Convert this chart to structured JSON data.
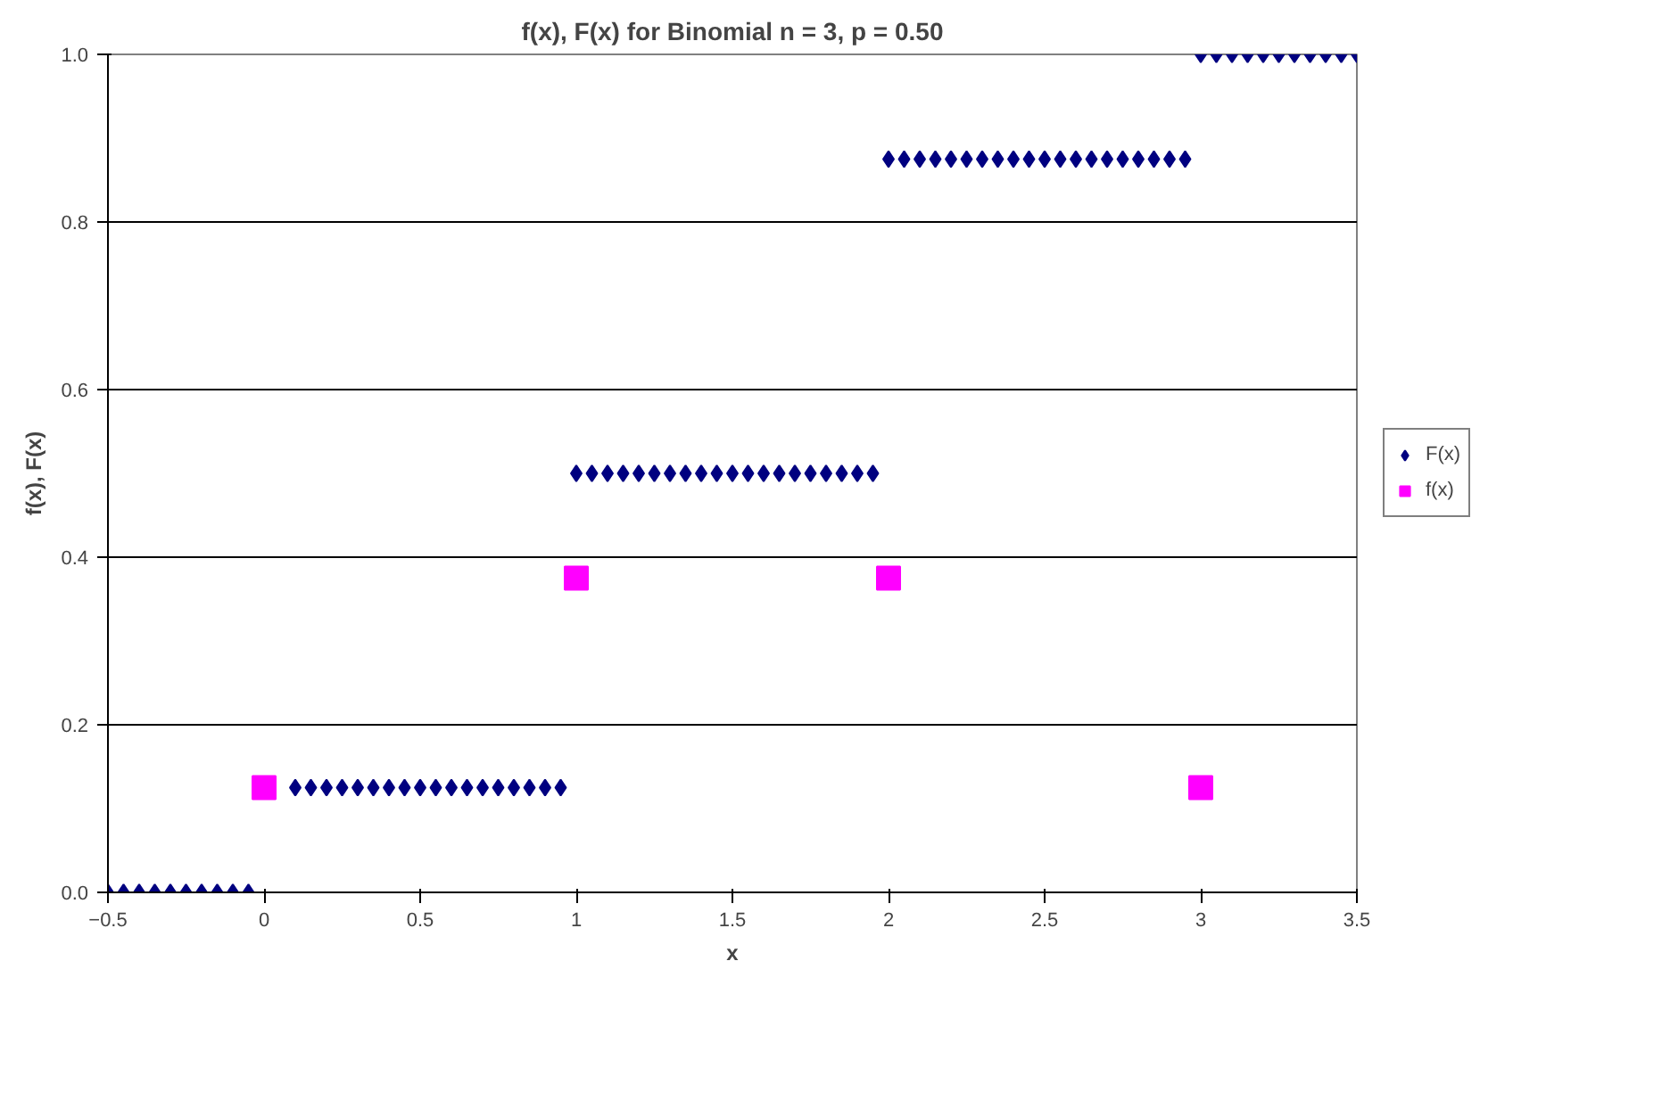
{
  "chart_data": {
    "type": "scatter",
    "title": "f(x), F(x) for Binomial n = 3, p = 0.50",
    "xlabel": "x",
    "ylabel": "f(x), F(x)",
    "xlim": [
      -0.5,
      3.5
    ],
    "xticks": [
      -0.5,
      0,
      0.5,
      1,
      1.5,
      2,
      2.5,
      3,
      3.5
    ],
    "ylim": [
      0,
      1
    ],
    "yticks": [
      {
        "value": 0,
        "label": "0.0"
      },
      {
        "value": 0.2,
        "label": "0.2"
      },
      {
        "value": 0.4,
        "label": "0.4"
      },
      {
        "value": 0.6,
        "label": "0.6"
      },
      {
        "value": 0.8,
        "label": "0.8"
      },
      {
        "value": 1,
        "label": "1.0"
      }
    ],
    "grid": "y",
    "legend": "right",
    "series": [
      {
        "name": "F(x)",
        "color": "#000080",
        "marker": "diamond",
        "x": [
          -0.5,
          -0.45,
          -0.4,
          -0.35,
          -0.3,
          -0.25,
          -0.2,
          -0.15,
          -0.1,
          -0.05,
          0.1,
          0.15,
          0.2,
          0.25,
          0.3,
          0.35,
          0.4,
          0.45,
          0.5,
          0.55,
          0.6,
          0.65,
          0.7,
          0.75,
          0.8,
          0.85,
          0.9,
          0.95,
          1,
          1.05,
          1.1,
          1.15,
          1.2,
          1.25,
          1.3,
          1.35,
          1.4,
          1.45,
          1.5,
          1.55,
          1.6,
          1.65,
          1.7,
          1.75,
          1.8,
          1.85,
          1.9,
          1.95,
          2,
          2.05,
          2.1,
          2.15,
          2.2,
          2.25,
          2.3,
          2.35,
          2.4,
          2.45,
          2.5,
          2.55,
          2.6,
          2.65,
          2.7,
          2.75,
          2.8,
          2.85,
          2.9,
          2.95,
          3,
          3.05,
          3.1,
          3.15,
          3.2,
          3.25,
          3.3,
          3.35,
          3.4,
          3.45,
          3.5
        ],
        "values": [
          0,
          0,
          0,
          0,
          0,
          0,
          0,
          0,
          0,
          0,
          0.125,
          0.125,
          0.125,
          0.125,
          0.125,
          0.125,
          0.125,
          0.125,
          0.125,
          0.125,
          0.125,
          0.125,
          0.125,
          0.125,
          0.125,
          0.125,
          0.125,
          0.125,
          0.5,
          0.5,
          0.5,
          0.5,
          0.5,
          0.5,
          0.5,
          0.5,
          0.5,
          0.5,
          0.5,
          0.5,
          0.5,
          0.5,
          0.5,
          0.5,
          0.5,
          0.5,
          0.5,
          0.5,
          0.875,
          0.875,
          0.875,
          0.875,
          0.875,
          0.875,
          0.875,
          0.875,
          0.875,
          0.875,
          0.875,
          0.875,
          0.875,
          0.875,
          0.875,
          0.875,
          0.875,
          0.875,
          0.875,
          0.875,
          1,
          1,
          1,
          1,
          1,
          1,
          1,
          1,
          1,
          1,
          1
        ]
      },
      {
        "name": "f(x)",
        "color": "#ff00ff",
        "marker": "square",
        "x": [
          0,
          1,
          2,
          3
        ],
        "values": [
          0.125,
          0.375,
          0.375,
          0.125
        ]
      }
    ]
  }
}
